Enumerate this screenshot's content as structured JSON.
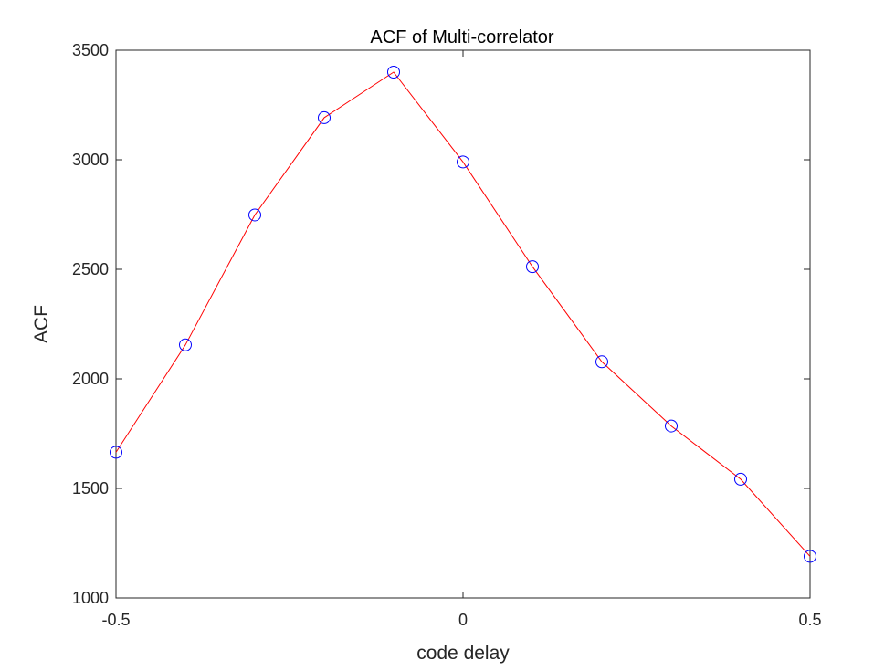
{
  "chart_data": {
    "type": "line",
    "title": "ACF of Multi-correlator",
    "xlabel": "code delay",
    "ylabel": "ACF",
    "xlim": [
      -0.5,
      0.5
    ],
    "ylim": [
      1000,
      3500
    ],
    "xticks": [
      -0.5,
      0,
      0.5
    ],
    "xtick_labels": [
      "-0.5",
      "0",
      "0.5"
    ],
    "yticks": [
      1000,
      1500,
      2000,
      2500,
      3000,
      3500
    ],
    "ytick_labels": [
      "1000",
      "1500",
      "2000",
      "2500",
      "3000",
      "3500"
    ],
    "grid": false,
    "legend": "none",
    "series": [
      {
        "x": [
          -0.5,
          -0.4,
          -0.3,
          -0.2,
          -0.1,
          0.0,
          0.1,
          0.2,
          0.3,
          0.4,
          0.5
        ],
        "y": [
          1665,
          2155,
          2748,
          3192,
          3400,
          2990,
          2512,
          2078,
          1785,
          1542,
          1190
        ],
        "line_color": "#ff0000",
        "marker": "circle",
        "marker_color": "#0000ff"
      }
    ]
  }
}
